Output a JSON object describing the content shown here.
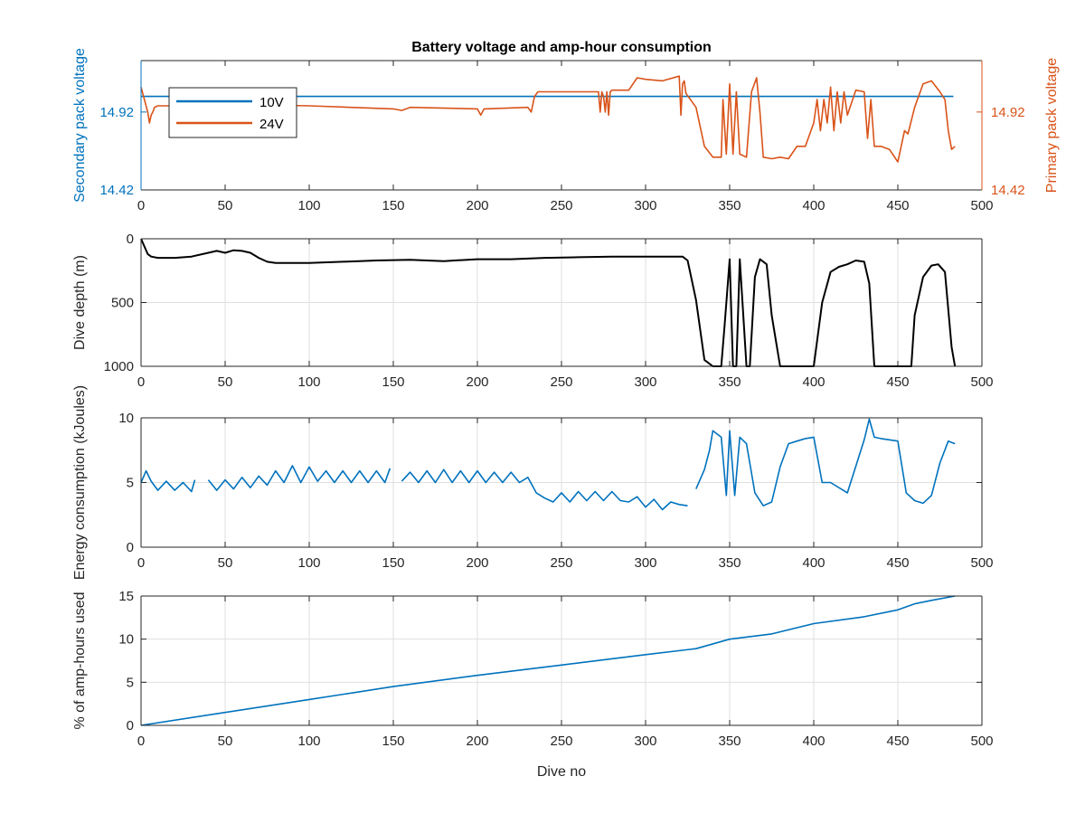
{
  "chart_data": [
    {
      "type": "line",
      "title": "Battery voltage and amp-hour consumption",
      "xlabel": "",
      "ylabel_left": "Secondary pack voltage",
      "ylabel_right": "Primary pack voltage",
      "xlim": [
        0,
        500
      ],
      "xticks": [
        "0",
        "50",
        "100",
        "150",
        "200",
        "250",
        "300",
        "350",
        "400",
        "450",
        "500"
      ],
      "ylim_left": [
        14.42,
        15.25
      ],
      "yticks_left": [
        "14.42",
        "14.92"
      ],
      "ylim_right": [
        14.42,
        15.25
      ],
      "yticks_right": [
        "14.42",
        "14.92"
      ],
      "grid": false,
      "legend_position": "top-left",
      "series": [
        {
          "name": "10V",
          "axis": "left",
          "color": "#0072BD",
          "x": [
            0,
            483
          ],
          "y": [
            15.02,
            15.02
          ]
        },
        {
          "name": "24V",
          "axis": "right",
          "color": "#D95319",
          "x": [
            0,
            2,
            4,
            5,
            6,
            7,
            8,
            10,
            20,
            50,
            100,
            150,
            155,
            160,
            200,
            202,
            204,
            230,
            232,
            234,
            236,
            240,
            272,
            273,
            274,
            275,
            276,
            277,
            278,
            279,
            280,
            285,
            290,
            295,
            300,
            310,
            320,
            321,
            322,
            323,
            324,
            330,
            335,
            340,
            345,
            346,
            348,
            350,
            352,
            354,
            356,
            360,
            363,
            366,
            368,
            370,
            375,
            380,
            385,
            390,
            395,
            400,
            402,
            404,
            406,
            408,
            410,
            412,
            414,
            416,
            418,
            420,
            425,
            430,
            432,
            434,
            436,
            440,
            445,
            450,
            452,
            454,
            456,
            460,
            465,
            470,
            475,
            478,
            480,
            482,
            484
          ],
          "y": [
            15.08,
            15.0,
            14.92,
            14.85,
            14.9,
            14.92,
            14.95,
            14.96,
            14.96,
            14.97,
            14.96,
            14.94,
            14.93,
            14.95,
            14.94,
            14.9,
            14.94,
            14.95,
            14.92,
            15.02,
            15.05,
            15.05,
            15.05,
            14.92,
            15.05,
            15.02,
            14.92,
            15.05,
            14.9,
            15.05,
            15.06,
            15.06,
            15.06,
            15.14,
            15.13,
            15.12,
            15.15,
            14.9,
            15.1,
            15.12,
            15.04,
            14.95,
            14.7,
            14.63,
            14.63,
            15.0,
            14.65,
            15.1,
            14.65,
            15.05,
            14.65,
            14.63,
            15.05,
            15.14,
            14.92,
            14.63,
            14.62,
            14.63,
            14.62,
            14.7,
            14.7,
            14.85,
            15.0,
            14.8,
            15.0,
            14.85,
            15.08,
            14.8,
            15.05,
            14.85,
            15.05,
            14.9,
            15.06,
            15.05,
            14.75,
            15.0,
            14.7,
            14.7,
            14.68,
            14.6,
            14.7,
            14.8,
            14.78,
            14.95,
            15.1,
            15.12,
            15.05,
            15.0,
            14.8,
            14.68,
            14.7
          ]
        }
      ]
    },
    {
      "type": "line",
      "title": "",
      "xlabel": "",
      "ylabel": "Dive depth (m)",
      "xlim": [
        0,
        500
      ],
      "xticks": [
        "0",
        "50",
        "100",
        "150",
        "200",
        "250",
        "300",
        "350",
        "400",
        "450",
        "500"
      ],
      "ylim": [
        1000,
        0
      ],
      "yticks": [
        "0",
        "500",
        "1000"
      ],
      "y_reversed": true,
      "grid": true,
      "series": [
        {
          "color": "#000000",
          "x": [
            0,
            2,
            4,
            6,
            10,
            20,
            30,
            40,
            45,
            50,
            55,
            60,
            65,
            70,
            75,
            80,
            100,
            120,
            140,
            160,
            180,
            200,
            220,
            240,
            260,
            280,
            300,
            320,
            322,
            325,
            330,
            335,
            340,
            345,
            347,
            350,
            352,
            354,
            356,
            360,
            362,
            365,
            368,
            372,
            375,
            380,
            390,
            400,
            405,
            410,
            415,
            420,
            425,
            430,
            433,
            436,
            440,
            450,
            458,
            460,
            465,
            470,
            474,
            478,
            482,
            484
          ],
          "y": [
            0,
            60,
            120,
            140,
            150,
            150,
            140,
            110,
            95,
            110,
            90,
            95,
            110,
            150,
            180,
            190,
            190,
            180,
            170,
            165,
            175,
            160,
            160,
            150,
            145,
            140,
            140,
            140,
            140,
            170,
            480,
            950,
            1000,
            1000,
            680,
            160,
            1000,
            1000,
            160,
            1000,
            1000,
            300,
            160,
            200,
            600,
            1000,
            1000,
            1000,
            500,
            260,
            220,
            200,
            170,
            180,
            350,
            1000,
            1000,
            1000,
            1000,
            600,
            300,
            210,
            200,
            260,
            850,
            1000
          ]
        }
      ]
    },
    {
      "type": "line",
      "title": "",
      "xlabel": "",
      "ylabel": "Energy consumption (kJoules)",
      "xlim": [
        0,
        500
      ],
      "xticks": [
        "0",
        "50",
        "100",
        "150",
        "200",
        "250",
        "300",
        "350",
        "400",
        "450",
        "500"
      ],
      "ylim": [
        0,
        10
      ],
      "yticks": [
        "0",
        "5",
        "10"
      ],
      "grid": true,
      "series": [
        {
          "color": "#0072BD",
          "x": [
            0,
            3,
            6,
            10,
            15,
            20,
            25,
            30,
            32,
            null,
            40,
            45,
            50,
            55,
            60,
            65,
            70,
            75,
            80,
            85,
            90,
            95,
            100,
            105,
            110,
            115,
            120,
            125,
            130,
            135,
            140,
            145,
            148,
            null,
            155,
            160,
            165,
            170,
            175,
            180,
            185,
            190,
            195,
            200,
            205,
            210,
            215,
            220,
            225,
            230,
            235,
            240,
            245,
            250,
            255,
            260,
            265,
            270,
            275,
            280,
            285,
            290,
            295,
            300,
            305,
            310,
            315,
            320,
            325,
            null,
            330,
            335,
            338,
            340,
            345,
            348,
            350,
            353,
            356,
            360,
            365,
            370,
            375,
            380,
            385,
            390,
            395,
            400,
            405,
            410,
            420,
            430,
            433,
            436,
            440,
            450,
            455,
            460,
            465,
            470,
            475,
            480,
            484
          ],
          "y": [
            5.0,
            5.9,
            5.1,
            4.4,
            5.1,
            4.4,
            5.0,
            4.3,
            5.2,
            null,
            5.2,
            4.4,
            5.2,
            4.5,
            5.4,
            4.6,
            5.5,
            4.8,
            5.9,
            5.0,
            6.3,
            5.0,
            6.2,
            5.1,
            5.9,
            5.0,
            5.9,
            5.0,
            5.9,
            5.0,
            5.9,
            5.0,
            6.1,
            null,
            5.1,
            5.8,
            5.0,
            5.9,
            5.0,
            6.0,
            5.0,
            5.9,
            5.0,
            5.9,
            5.0,
            5.8,
            5.0,
            5.8,
            5.0,
            5.4,
            4.2,
            3.8,
            3.5,
            4.2,
            3.5,
            4.3,
            3.6,
            4.3,
            3.6,
            4.3,
            3.6,
            3.5,
            3.9,
            3.1,
            3.7,
            2.9,
            3.5,
            3.3,
            3.2,
            null,
            4.5,
            6.0,
            7.5,
            9.0,
            8.5,
            4.0,
            9.0,
            4.0,
            8.5,
            8.0,
            4.2,
            3.2,
            3.5,
            6.2,
            8.0,
            8.2,
            8.4,
            8.5,
            5.0,
            5.0,
            4.2,
            8.3,
            9.9,
            8.5,
            8.4,
            8.2,
            4.2,
            3.6,
            3.4,
            4.0,
            6.5,
            8.2,
            8.0
          ]
        }
      ]
    },
    {
      "type": "line",
      "title": "",
      "xlabel": "Dive no",
      "ylabel": "% of amp-hours used",
      "xlim": [
        0,
        500
      ],
      "xticks": [
        "0",
        "50",
        "100",
        "150",
        "200",
        "250",
        "300",
        "350",
        "400",
        "450",
        "500"
      ],
      "ylim": [
        0,
        15
      ],
      "yticks": [
        "0",
        "5",
        "10",
        "15"
      ],
      "grid": true,
      "series": [
        {
          "color": "#0072BD",
          "x": [
            0,
            50,
            100,
            150,
            200,
            250,
            300,
            330,
            350,
            375,
            400,
            430,
            450,
            460,
            470,
            484
          ],
          "y": [
            0,
            1.5,
            3.0,
            4.5,
            5.8,
            7.0,
            8.2,
            8.9,
            10.0,
            10.6,
            11.8,
            12.6,
            13.4,
            14.1,
            14.5,
            15.0
          ]
        }
      ]
    }
  ]
}
